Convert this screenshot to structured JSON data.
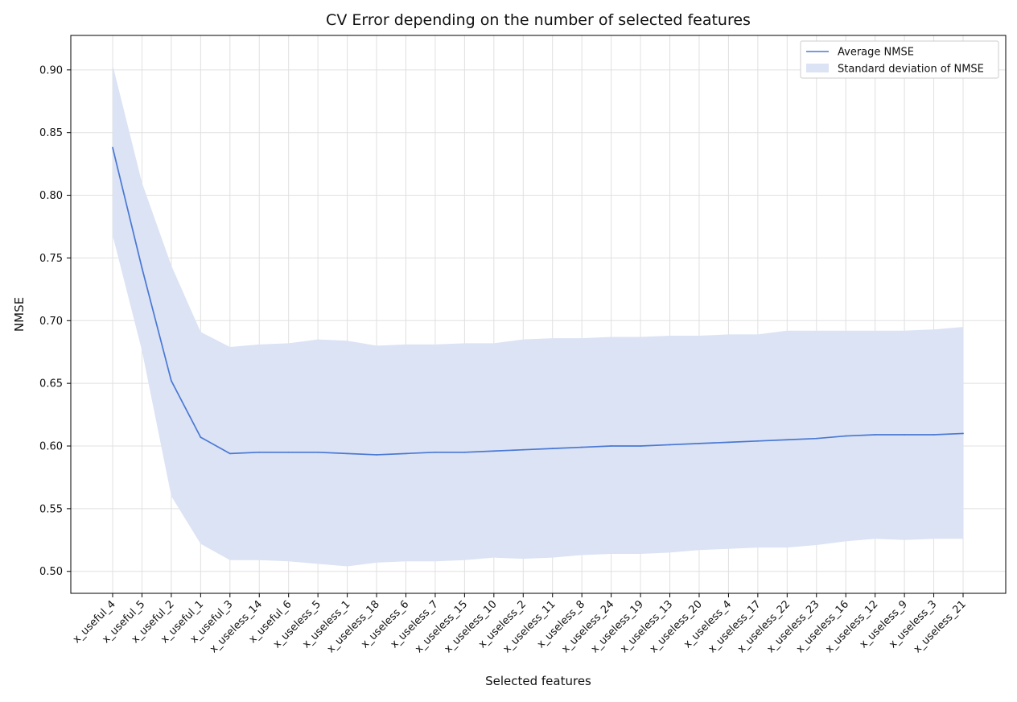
{
  "chart_data": {
    "type": "line",
    "title": "CV Error depending on the number of selected features",
    "xlabel": "Selected features",
    "ylabel": "NMSE",
    "ylim": [
      0.4825,
      0.9275
    ],
    "yticks": [
      "0.50",
      "0.55",
      "0.60",
      "0.65",
      "0.70",
      "0.75",
      "0.80",
      "0.85",
      "0.90"
    ],
    "grid": true,
    "legend_position": "top-right",
    "categories": [
      "x_useful_4",
      "x_useful_5",
      "x_useful_2",
      "x_useful_1",
      "x_useful_3",
      "x_useless_14",
      "x_useful_6",
      "x_useless_5",
      "x_useless_1",
      "x_useless_18",
      "x_useless_6",
      "x_useless_7",
      "x_useless_15",
      "x_useless_10",
      "x_useless_2",
      "x_useless_11",
      "x_useless_8",
      "x_useless_24",
      "x_useless_19",
      "x_useless_13",
      "x_useless_20",
      "x_useless_4",
      "x_useless_17",
      "x_useless_22",
      "x_useless_23",
      "x_useless_16",
      "x_useless_12",
      "x_useless_9",
      "x_useless_3",
      "x_useless_21"
    ],
    "series": [
      {
        "name": "Average NMSE",
        "kind": "line",
        "color": "#4a78d4",
        "values": [
          0.838,
          0.742,
          0.652,
          0.607,
          0.594,
          0.595,
          0.595,
          0.595,
          0.594,
          0.593,
          0.594,
          0.595,
          0.595,
          0.596,
          0.597,
          0.598,
          0.599,
          0.6,
          0.6,
          0.601,
          0.602,
          0.603,
          0.604,
          0.605,
          0.606,
          0.608,
          0.609,
          0.609,
          0.609,
          0.61
        ]
      },
      {
        "name": "Standard deviation of NMSE",
        "kind": "band",
        "color": "#dbe3f4",
        "upper": [
          0.904,
          0.81,
          0.744,
          0.691,
          0.679,
          0.681,
          0.682,
          0.685,
          0.684,
          0.68,
          0.681,
          0.681,
          0.682,
          0.682,
          0.685,
          0.686,
          0.686,
          0.687,
          0.687,
          0.688,
          0.688,
          0.689,
          0.689,
          0.692,
          0.692,
          0.692,
          0.692,
          0.692,
          0.693,
          0.695
        ],
        "lower": [
          0.768,
          0.676,
          0.56,
          0.522,
          0.509,
          0.509,
          0.508,
          0.506,
          0.504,
          0.507,
          0.508,
          0.508,
          0.509,
          0.511,
          0.51,
          0.511,
          0.513,
          0.514,
          0.514,
          0.515,
          0.517,
          0.518,
          0.519,
          0.519,
          0.521,
          0.524,
          0.526,
          0.525,
          0.526,
          0.526
        ]
      }
    ]
  }
}
